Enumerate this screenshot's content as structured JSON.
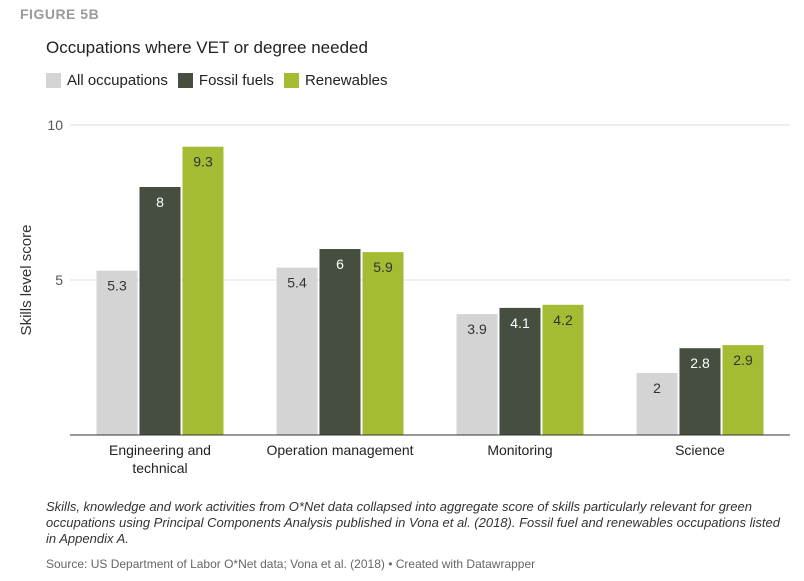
{
  "figure_label": "FIGURE 5B",
  "chart_data": {
    "type": "bar",
    "title": "Occupations where VET or degree needed",
    "ylabel": "Skills level score",
    "xlabel": "",
    "ylim": [
      0,
      10
    ],
    "yticks": [
      5,
      10
    ],
    "grid": true,
    "legend_position": "top-left",
    "categories": [
      "Engineering and technical",
      "Operation management",
      "Monitoring",
      "Science"
    ],
    "series": [
      {
        "name": "All occupations",
        "values": [
          5.3,
          5.4,
          3.9,
          2
        ],
        "color": "#d4d4d4",
        "label_color": "#333333"
      },
      {
        "name": "Fossil fuels",
        "values": [
          8,
          6,
          4.1,
          2.8
        ],
        "color": "#464e40",
        "label_color": "#ffffff"
      },
      {
        "name": "Renewables",
        "values": [
          9.3,
          5.9,
          4.2,
          2.9
        ],
        "color": "#a3bc34",
        "label_color": "#333333"
      }
    ]
  },
  "note": "Skills, knowledge and work activities from O*Net data collapsed into aggregate score of skills particularly relevant for green occupations using Principal Components Analysis published in Vona et al. (2018). Fossil fuel and renewables occupations listed in Appendix A.",
  "source": "Source: US Department of Labor O*Net data; Vona et al. (2018) • Created with Datawrapper"
}
